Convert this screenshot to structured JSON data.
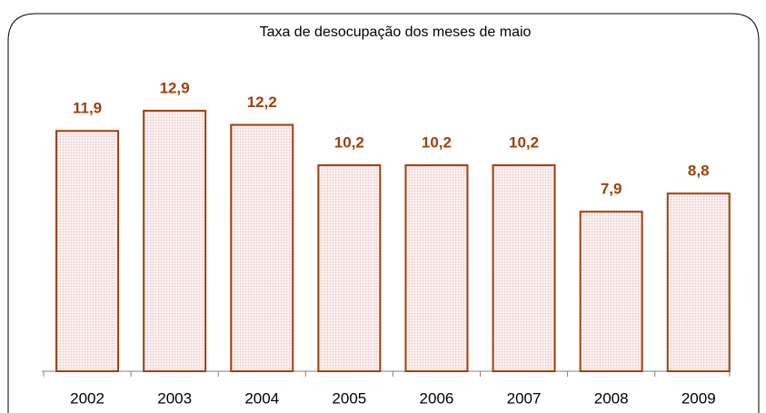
{
  "chart_data": {
    "type": "bar",
    "title": "Taxa de desocupação dos meses de maio",
    "categories": [
      "2002",
      "2003",
      "2004",
      "2005",
      "2006",
      "2007",
      "2008",
      "2009"
    ],
    "values": [
      11.9,
      12.9,
      12.2,
      10.2,
      10.2,
      10.2,
      7.9,
      8.8
    ],
    "value_labels": [
      "11,9",
      "12,9",
      "12,2",
      "10,2",
      "10,2",
      "10,2",
      "7,9",
      "8,8"
    ],
    "color": "#a0400a"
  }
}
